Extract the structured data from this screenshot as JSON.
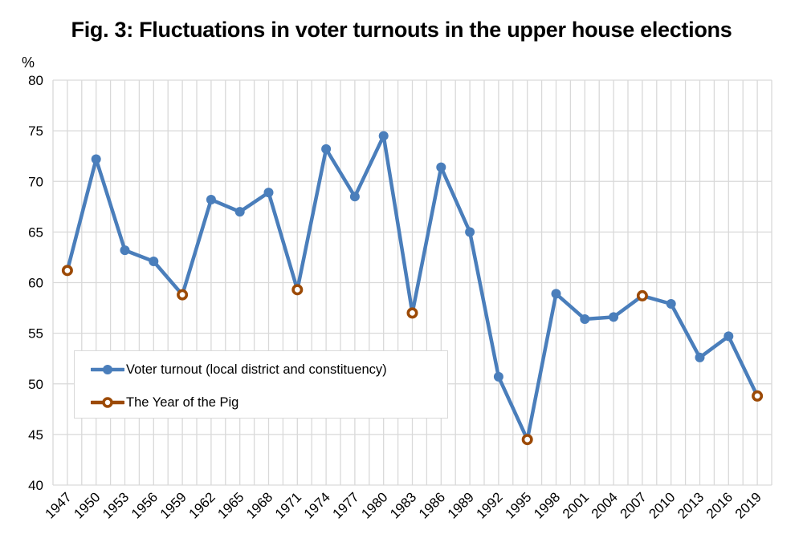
{
  "title": "Fig. 3: Fluctuations in voter turnouts in the upper house elections",
  "colors": {
    "turnout": "#4a7ebb",
    "pig": "#9c4a06",
    "grid": "#d9d9d9"
  },
  "chart_data": {
    "type": "line",
    "title": "Fig. 3: Fluctuations in voter turnouts in the upper house elections",
    "xlabel": "",
    "ylabel": "%",
    "ylim": [
      40,
      80
    ],
    "yticks": [
      40,
      45,
      50,
      55,
      60,
      65,
      70,
      75,
      80
    ],
    "grid": true,
    "legend_position": "lower-left inside",
    "categories": [
      "1947",
      "1950",
      "1953",
      "1956",
      "1959",
      "1962",
      "1965",
      "1968",
      "1971",
      "1974",
      "1977",
      "1980",
      "1983",
      "1986",
      "1989",
      "1992",
      "1995",
      "1998",
      "2001",
      "2004",
      "2007",
      "2010",
      "2013",
      "2016",
      "2019"
    ],
    "series": [
      {
        "name": "Voter turnout (local district and constituency)",
        "values": [
          61.2,
          72.2,
          63.2,
          62.1,
          58.8,
          68.2,
          67.0,
          68.9,
          59.3,
          73.2,
          68.5,
          74.5,
          57.0,
          71.4,
          65.0,
          50.7,
          44.5,
          58.9,
          56.4,
          56.6,
          58.7,
          57.9,
          52.6,
          54.7,
          48.8
        ]
      },
      {
        "name": "The Year of the Pig",
        "years": [
          "1947",
          "1959",
          "1971",
          "1983",
          "1995",
          "2007",
          "2019"
        ],
        "values": [
          61.2,
          58.8,
          59.3,
          57.0,
          44.5,
          58.7,
          48.8
        ]
      }
    ]
  },
  "legend": {
    "items": [
      {
        "label": "Voter turnout (local district and constituency)",
        "marker": "filled-circle-line"
      },
      {
        "label": "The Year of the Pig",
        "marker": "hollow-circle-line"
      }
    ]
  }
}
